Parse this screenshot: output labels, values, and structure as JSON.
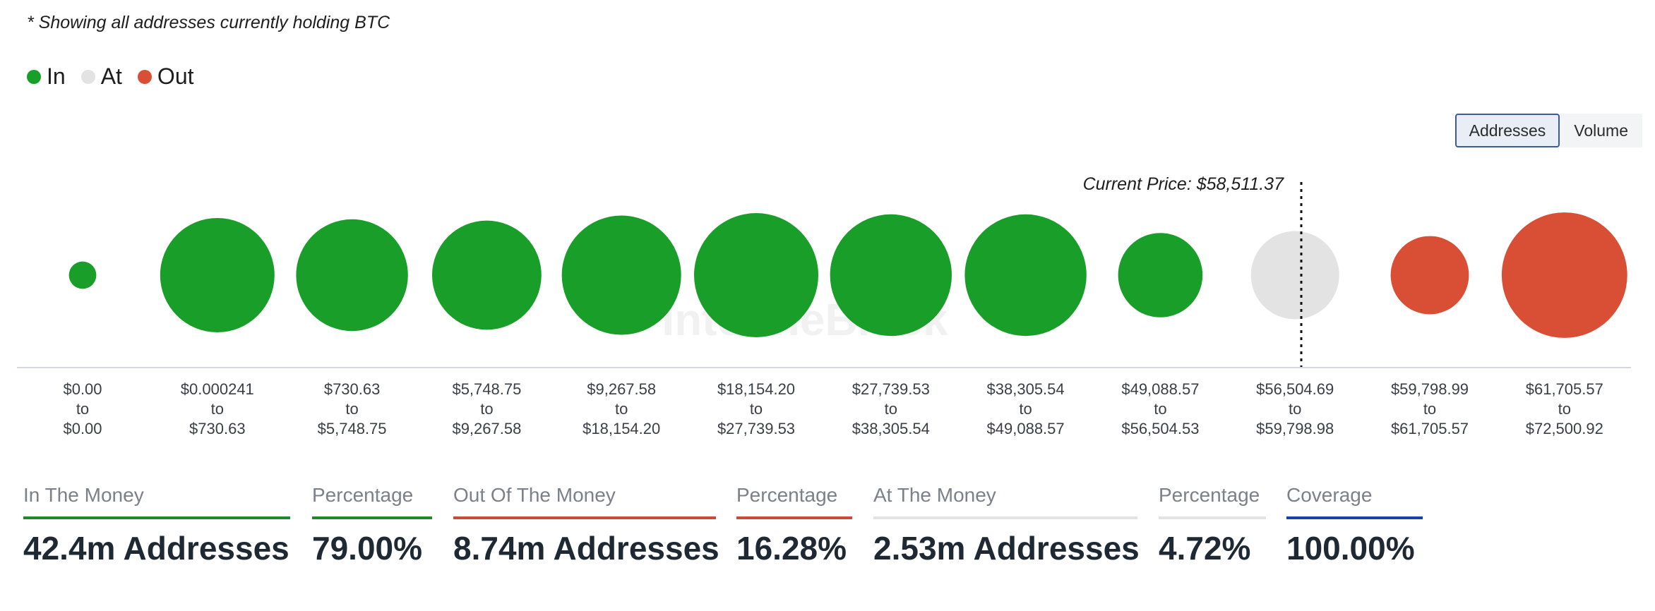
{
  "note": "* Showing all addresses currently holding BTC",
  "legend": [
    {
      "label": "In",
      "color": "#1a9e2a"
    },
    {
      "label": "At",
      "color": "#e3e3e3"
    },
    {
      "label": "Out",
      "color": "#d84f36"
    }
  ],
  "toggle": {
    "addresses_label": "Addresses",
    "volume_label": "Volume",
    "active": "Addresses"
  },
  "chart_data": {
    "type": "bubble",
    "title": "",
    "annotation": "Current Price: $58,511.37",
    "current_price": 58511.37,
    "size_metric": "addresses",
    "categories": [
      {
        "from": "$0.00",
        "to": "$0.00",
        "status": "In",
        "relative_size": 0.22
      },
      {
        "from": "$0.000241",
        "to": "$730.63",
        "status": "In",
        "relative_size": 0.92
      },
      {
        "from": "$730.63",
        "to": "$5,748.75",
        "status": "In",
        "relative_size": 0.9
      },
      {
        "from": "$5,748.75",
        "to": "$9,267.58",
        "status": "In",
        "relative_size": 0.88
      },
      {
        "from": "$9,267.58",
        "to": "$18,154.20",
        "status": "In",
        "relative_size": 0.96
      },
      {
        "from": "$18,154.20",
        "to": "$27,739.53",
        "status": "In",
        "relative_size": 1.0
      },
      {
        "from": "$27,739.53",
        "to": "$38,305.54",
        "status": "In",
        "relative_size": 0.98
      },
      {
        "from": "$38,305.54",
        "to": "$49,088.57",
        "status": "In",
        "relative_size": 0.98
      },
      {
        "from": "$49,088.57",
        "to": "$56,504.53",
        "status": "In",
        "relative_size": 0.68
      },
      {
        "from": "$56,504.69",
        "to": "$59,798.98",
        "status": "At",
        "relative_size": 0.71
      },
      {
        "from": "$59,798.99",
        "to": "$61,705.57",
        "status": "Out",
        "relative_size": 0.63
      },
      {
        "from": "$61,705.57",
        "to": "$72,500.92",
        "status": "Out",
        "relative_size": 1.01
      }
    ],
    "to_word": "to",
    "colors": {
      "In": "#1a9e2a",
      "At": "#e3e3e3",
      "Out": "#d84f36"
    },
    "watermark": "IntoTheBlock"
  },
  "metrics": [
    {
      "label": "In The Money",
      "value": "42.4m Addresses",
      "color": "#1e8a2c"
    },
    {
      "label": "Percentage",
      "value": "79.00%",
      "color": "#1e8a2c"
    },
    {
      "label": "Out Of The Money",
      "value": "8.74m Addresses",
      "color": "#c94a36"
    },
    {
      "label": "Percentage",
      "value": "16.28%",
      "color": "#c94a36"
    },
    {
      "label": "At The Money",
      "value": "2.53m Addresses",
      "color": "#e3e3e3"
    },
    {
      "label": "Percentage",
      "value": "4.72%",
      "color": "#e3e3e3"
    },
    {
      "label": "Coverage",
      "value": "100.00%",
      "color": "#1a3fae"
    }
  ]
}
